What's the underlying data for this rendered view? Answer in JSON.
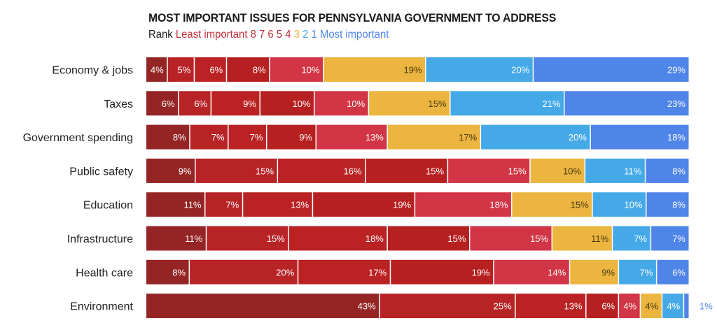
{
  "chart_data": {
    "type": "bar",
    "orientation": "horizontal",
    "stacked": true,
    "title": "MOST IMPORTANT ISSUES FOR PENNSYLVANIA GOVERNMENT TO ADDRESS",
    "legend": {
      "prefix": "Rank",
      "least_label": "Least important",
      "most_label": "Most important",
      "ranks": [
        "8",
        "7",
        "6",
        "5",
        "4",
        "3",
        "2",
        "1"
      ],
      "placement": "top-left"
    },
    "xlabel": "",
    "ylabel": "",
    "xlim": [
      0,
      100
    ],
    "grid": false,
    "categories": [
      "Economy & jobs",
      "Taxes",
      "Government spending",
      "Public safety",
      "Education",
      "Infrastructure",
      "Health care",
      "Environment"
    ],
    "series": [
      {
        "name": "Rank 8",
        "color": "#952525",
        "values": [
          4,
          6,
          8,
          9,
          11,
          11,
          8,
          43
        ]
      },
      {
        "name": "Rank 7",
        "color": "#b82326",
        "values": [
          5,
          6,
          7,
          15,
          7,
          15,
          20,
          25
        ]
      },
      {
        "name": "Rank 6",
        "color": "#bb2223",
        "values": [
          6,
          9,
          7,
          16,
          13,
          18,
          17,
          13
        ]
      },
      {
        "name": "Rank 5",
        "color": "#b72020",
        "values": [
          8,
          10,
          9,
          15,
          19,
          15,
          19,
          6
        ]
      },
      {
        "name": "Rank 4",
        "color": "#d23545",
        "values": [
          10,
          10,
          13,
          15,
          18,
          15,
          14,
          4
        ]
      },
      {
        "name": "Rank 3",
        "color": "#ebb540",
        "values": [
          19,
          15,
          17,
          10,
          15,
          11,
          9,
          4
        ]
      },
      {
        "name": "Rank 2",
        "color": "#45a9e8",
        "values": [
          20,
          21,
          20,
          11,
          10,
          7,
          7,
          4
        ]
      },
      {
        "name": "Rank 1",
        "color": "#4f84e8",
        "values": [
          29,
          23,
          18,
          8,
          8,
          7,
          6,
          1
        ]
      }
    ],
    "label_colors": {
      "on_red": "#ffffff",
      "on_yellow": "#4a3a10",
      "on_blue": "#ffffff",
      "outside": "#4f84e8"
    },
    "legend_colors": {
      "prefix": "#1a1a1a",
      "least": "#c0323a",
      "rank3": "#ebb540",
      "rank2": "#45a9e8",
      "most": "#4f84e8"
    }
  }
}
